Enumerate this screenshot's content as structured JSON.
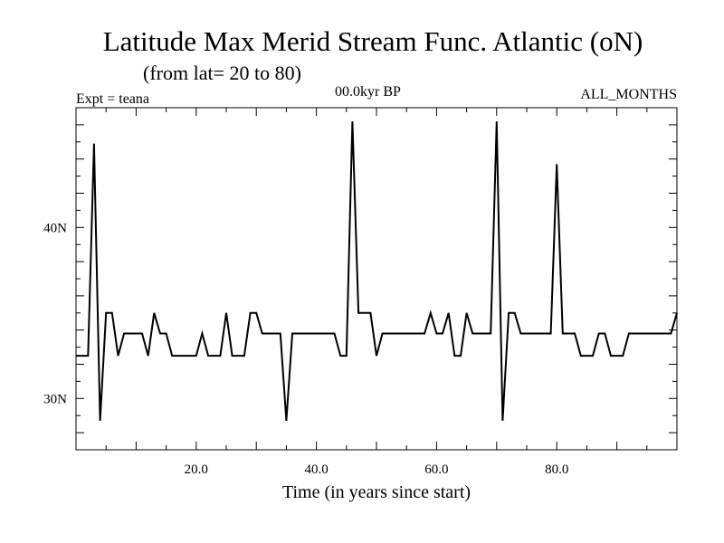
{
  "chart_data": {
    "type": "line",
    "title": "Latitude Max Merid Stream Func. Atlantic (oN)",
    "subtitle": "(from lat= 20 to 80)",
    "experiment": "Expt = teana",
    "time_label": "00.0kyr BP",
    "months_label": "ALL_MONTHS",
    "xlabel": "Time (in years since start)",
    "ylabel": "",
    "xlim": [
      0,
      100
    ],
    "ylim": [
      27,
      47
    ],
    "x_ticks": [
      20,
      40,
      60,
      80
    ],
    "x_tick_labels": [
      "20.0",
      "40.0",
      "60.0",
      "80.0"
    ],
    "y_ticks": [
      30,
      40
    ],
    "y_tick_labels": [
      "30N",
      "40N"
    ],
    "grid": false,
    "series": [
      {
        "color": "#000000",
        "x": [
          0,
          1,
          2,
          3,
          4,
          5,
          6,
          7,
          8,
          9,
          10,
          11,
          12,
          13,
          14,
          15,
          16,
          17,
          18,
          19,
          20,
          21,
          22,
          23,
          24,
          25,
          26,
          27,
          28,
          29,
          30,
          31,
          32,
          33,
          34,
          35,
          36,
          37,
          38,
          39,
          40,
          41,
          42,
          43,
          44,
          45,
          46,
          47,
          48,
          49,
          50,
          51,
          52,
          53,
          54,
          55,
          56,
          57,
          58,
          59,
          60,
          61,
          62,
          63,
          64,
          65,
          66,
          67,
          68,
          69,
          70,
          71,
          72,
          73,
          74,
          75,
          76,
          77,
          78,
          79,
          80,
          81,
          82,
          83,
          84,
          85,
          86,
          87,
          88,
          89,
          90,
          91,
          92,
          93,
          94,
          95,
          96,
          97,
          98,
          99,
          100
        ],
        "y": [
          32.5,
          32.5,
          32.5,
          44.9,
          28.7,
          35.0,
          35.0,
          32.5,
          33.8,
          33.8,
          33.8,
          33.8,
          32.5,
          35.0,
          33.8,
          33.8,
          32.5,
          32.5,
          32.5,
          32.5,
          32.5,
          33.8,
          32.5,
          32.5,
          32.5,
          35.0,
          32.5,
          32.5,
          32.5,
          35.0,
          35.0,
          33.8,
          33.8,
          33.8,
          33.8,
          28.7,
          33.8,
          33.8,
          33.8,
          33.8,
          33.8,
          33.8,
          33.8,
          33.8,
          32.5,
          32.5,
          46.2,
          35.0,
          35.0,
          35.0,
          32.5,
          33.8,
          33.8,
          33.8,
          33.8,
          33.8,
          33.8,
          33.8,
          33.8,
          35.0,
          33.8,
          33.8,
          35.0,
          32.5,
          32.5,
          35.0,
          33.8,
          33.8,
          33.8,
          33.8,
          46.2,
          28.7,
          35.0,
          35.0,
          33.8,
          33.8,
          33.8,
          33.8,
          33.8,
          33.8,
          43.7,
          33.8,
          33.8,
          33.8,
          32.5,
          32.5,
          32.5,
          33.8,
          33.8,
          32.5,
          32.5,
          32.5,
          33.8,
          33.8,
          33.8,
          33.8,
          33.8,
          33.8,
          33.8,
          33.8,
          35.0
        ]
      }
    ]
  }
}
